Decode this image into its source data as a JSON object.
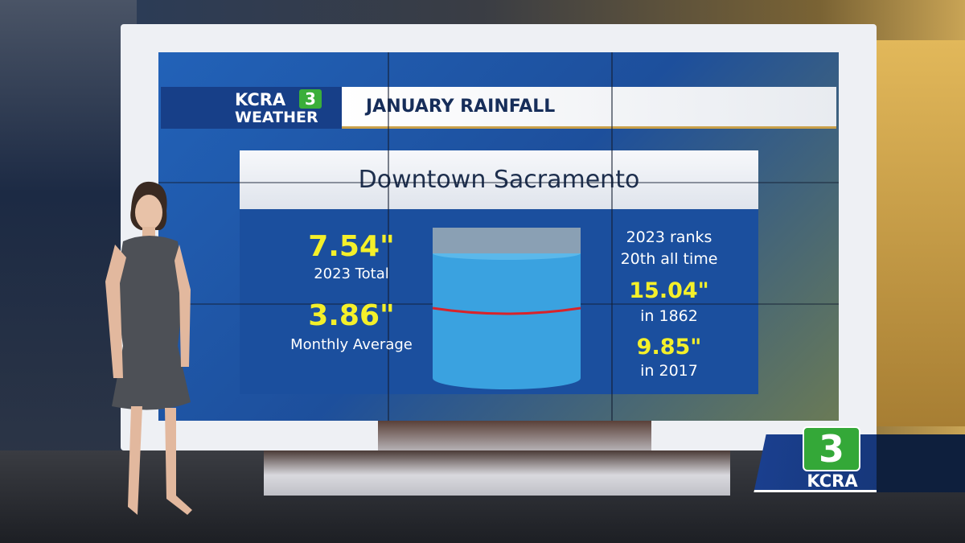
{
  "logo": {
    "name": "KCRA",
    "number": "3",
    "subtitle": "WEATHER"
  },
  "header": {
    "title": "JANUARY RAINFALL"
  },
  "panel": {
    "title": "Downtown Sacramento",
    "left_stats": [
      {
        "value": "7.54\"",
        "label": "2023 Total"
      },
      {
        "value": "3.86\"",
        "label": "Monthly Average"
      }
    ],
    "rank": [
      "2023 ranks",
      "20th all time"
    ],
    "records": [
      {
        "value": "15.04\"",
        "label": "in 1862"
      },
      {
        "value": "9.85\"",
        "label": "in 2017"
      }
    ]
  },
  "station_bug": {
    "number": "3",
    "name": "KCRA"
  }
}
